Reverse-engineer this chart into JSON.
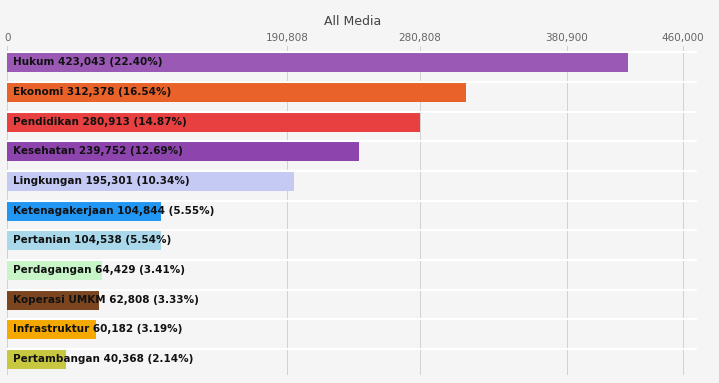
{
  "title": "All Media",
  "categories": [
    "Hukum 423,043 (22.40%)",
    "Ekonomi 312,378 (16.54%)",
    "Pendidikan 280,913 (14.87%)",
    "Kesehatan 239,752 (12.69%)",
    "Lingkungan 195,301 (10.34%)",
    "Ketenagakerjaan 104,844 (5.55%)",
    "Pertanian 104,538 (5.54%)",
    "Perdagangan 64,429 (3.41%)",
    "Koperasi UMKM 62,808 (3.33%)",
    "Infrastruktur 60,182 (3.19%)",
    "Pertambangan 40,368 (2.14%)"
  ],
  "values": [
    423043,
    312378,
    280913,
    239752,
    195301,
    104844,
    104538,
    64429,
    62808,
    60182,
    40368
  ],
  "colors": [
    "#9b59b6",
    "#e8622a",
    "#e84040",
    "#8e44ad",
    "#c5caf5",
    "#2196f3",
    "#a8d8ea",
    "#c8f5c8",
    "#7b4520",
    "#f5a800",
    "#c8c840"
  ],
  "xlim": [
    0,
    470000
  ],
  "xticks": [
    0,
    190808,
    280808,
    380900,
    460000
  ],
  "xtick_labels": [
    "0",
    "190,808",
    "280,808",
    "380,900",
    "460,000"
  ],
  "background_color": "#f5f5f5",
  "title_fontsize": 9,
  "label_fontsize": 7.5,
  "bar_height": 0.68,
  "bar_gap": 0.32
}
